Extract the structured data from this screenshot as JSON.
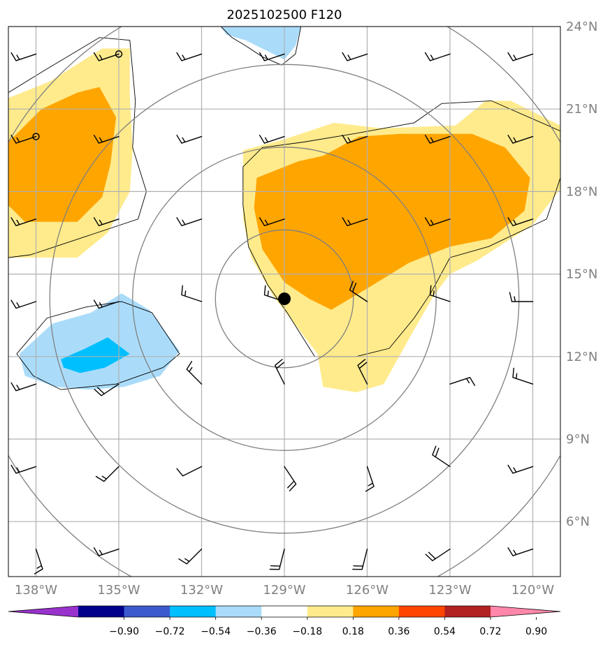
{
  "title": "2025102500 F120",
  "map": {
    "lon_range": [
      -139,
      -119
    ],
    "lat_range": [
      4,
      24
    ],
    "lat_ticks": [
      {
        "value": 24,
        "label": "24°N"
      },
      {
        "value": 21,
        "label": "21°N"
      },
      {
        "value": 18,
        "label": "18°N"
      },
      {
        "value": 15,
        "label": "15°N"
      },
      {
        "value": 12,
        "label": "12°N"
      },
      {
        "value": 9,
        "label": "9°N"
      },
      {
        "value": 6,
        "label": "6°N"
      }
    ],
    "lon_ticks": [
      {
        "value": -138,
        "label": "138°W"
      },
      {
        "value": -135,
        "label": "135°W"
      },
      {
        "value": -132,
        "label": "132°W"
      },
      {
        "value": -129,
        "label": "129°W"
      },
      {
        "value": -126,
        "label": "126°W"
      },
      {
        "value": -123,
        "label": "123°W"
      },
      {
        "value": -120,
        "label": "120°W"
      }
    ],
    "center": {
      "lon": -129,
      "lat": 14.1
    },
    "range_rings_deg": [
      2.5,
      5.5,
      8.5,
      11.5
    ],
    "grid_color": "#b0b0b0",
    "ring_color": "#808080"
  },
  "colorbar": {
    "colors": [
      "#9932cc",
      "#00008b",
      "#3c5acd",
      "#00bfff",
      "#aadcfa",
      "#ffffff",
      "#ffeb8c",
      "#ffa500",
      "#ff4500",
      "#b22222",
      "#ff88aa"
    ],
    "tick_labels": [
      "−0.90",
      "−0.72",
      "−0.54",
      "−0.36",
      "−0.18",
      "0.18",
      "0.36",
      "0.54",
      "0.72",
      "0.90"
    ]
  },
  "fields": [
    {
      "name": "west-positive-outer",
      "color": "#ffeb8c",
      "points": [
        [
          -139,
          21.4
        ],
        [
          -137.5,
          22.0
        ],
        [
          -135.6,
          23.2
        ],
        [
          -134.6,
          23.2
        ],
        [
          -134.6,
          21.5
        ],
        [
          -134.5,
          19.5
        ],
        [
          -134.6,
          18.0
        ],
        [
          -135.4,
          16.5
        ],
        [
          -136.5,
          15.6
        ],
        [
          -139,
          15.6
        ]
      ]
    },
    {
      "name": "west-positive-inner",
      "color": "#ffa500",
      "points": [
        [
          -139,
          19.8
        ],
        [
          -137.8,
          21.0
        ],
        [
          -136.5,
          21.6
        ],
        [
          -135.7,
          21.8
        ],
        [
          -135.1,
          20.7
        ],
        [
          -135.3,
          19.0
        ],
        [
          -135.6,
          17.8
        ],
        [
          -136.5,
          16.9
        ],
        [
          -138.4,
          16.9
        ],
        [
          -139,
          17.5
        ]
      ]
    },
    {
      "name": "east-positive-outer",
      "color": "#ffeb8c",
      "points": [
        [
          -130.5,
          19.5
        ],
        [
          -129.0,
          19.9
        ],
        [
          -127.2,
          20.5
        ],
        [
          -125.5,
          20.3
        ],
        [
          -122.8,
          20.4
        ],
        [
          -121.7,
          21.3
        ],
        [
          -120.8,
          21.3
        ],
        [
          -119,
          20.4
        ],
        [
          -119,
          18.1
        ],
        [
          -120.0,
          16.8
        ],
        [
          -122.0,
          15.5
        ],
        [
          -123.0,
          15.0
        ],
        [
          -123.6,
          14.2
        ],
        [
          -124.4,
          12.8
        ],
        [
          -125.4,
          11.0
        ],
        [
          -126.4,
          10.7
        ],
        [
          -127.6,
          10.9
        ],
        [
          -127.8,
          12.1
        ],
        [
          -129.4,
          14.2
        ],
        [
          -130.2,
          15.6
        ],
        [
          -130.5,
          17.0
        ]
      ]
    },
    {
      "name": "east-positive-inner",
      "color": "#ffa500",
      "points": [
        [
          -130.0,
          18.5
        ],
        [
          -128.5,
          19.1
        ],
        [
          -127.6,
          19.3
        ],
        [
          -126.3,
          20.0
        ],
        [
          -124.8,
          20.1
        ],
        [
          -122.2,
          20.1
        ],
        [
          -121.0,
          19.6
        ],
        [
          -120.1,
          18.5
        ],
        [
          -120.3,
          17.3
        ],
        [
          -121.5,
          16.3
        ],
        [
          -123.0,
          16.0
        ],
        [
          -124.5,
          15.4
        ],
        [
          -125.8,
          14.6
        ],
        [
          -127.3,
          13.7
        ],
        [
          -128.1,
          14.1
        ],
        [
          -129.0,
          14.7
        ],
        [
          -129.8,
          15.9
        ],
        [
          -130.1,
          17.4
        ]
      ]
    },
    {
      "name": "west-negative-outer",
      "color": "#aadcfa",
      "points": [
        [
          -138.6,
          12.1
        ],
        [
          -137.4,
          13.2
        ],
        [
          -136.0,
          13.6
        ],
        [
          -134.9,
          14.3
        ],
        [
          -133.9,
          13.7
        ],
        [
          -132.8,
          12.2
        ],
        [
          -133.5,
          11.3
        ],
        [
          -134.8,
          10.9
        ],
        [
          -136.1,
          10.8
        ],
        [
          -137.3,
          10.9
        ],
        [
          -138.4,
          11.3
        ]
      ]
    },
    {
      "name": "west-negative-inner",
      "color": "#00bfff",
      "points": [
        [
          -137.1,
          11.9
        ],
        [
          -136.2,
          12.3
        ],
        [
          -135.4,
          12.7
        ],
        [
          -134.6,
          12.1
        ],
        [
          -135.5,
          11.6
        ],
        [
          -136.4,
          11.4
        ],
        [
          -137.0,
          11.6
        ]
      ]
    },
    {
      "name": "north-negative",
      "color": "#aadcfa",
      "points": [
        [
          -131.3,
          24.0
        ],
        [
          -128.4,
          24.0
        ],
        [
          -128.6,
          23.3
        ],
        [
          -129.0,
          22.8
        ],
        [
          -129.6,
          23.1
        ],
        [
          -130.4,
          23.5
        ],
        [
          -131.1,
          23.7
        ]
      ]
    }
  ],
  "contours": [
    [
      [
        -139,
        21.6
      ],
      [
        -137.7,
        22.4
      ],
      [
        -135.7,
        23.6
      ],
      [
        -134.6,
        23.5
      ],
      [
        -134.4,
        21.3
      ],
      [
        -134.5,
        19.6
      ],
      [
        -134.0,
        18.0
      ],
      [
        -134.3,
        17.0
      ],
      [
        -136.4,
        16.3
      ],
      [
        -138.2,
        15.7
      ],
      [
        -139,
        15.6
      ]
    ],
    [
      [
        -138.7,
        12.1
      ],
      [
        -137.6,
        13.4
      ],
      [
        -136.2,
        13.8
      ],
      [
        -134.9,
        14.0
      ],
      [
        -133.8,
        13.6
      ],
      [
        -132.8,
        12.1
      ],
      [
        -133.4,
        11.6
      ],
      [
        -135.1,
        11.0
      ],
      [
        -137.1,
        10.8
      ],
      [
        -138.1,
        11.3
      ],
      [
        -138.7,
        12.1
      ]
    ],
    [
      [
        -131.3,
        24.0
      ],
      [
        -130.9,
        23.6
      ],
      [
        -130.4,
        23.3
      ],
      [
        -129.8,
        22.9
      ],
      [
        -129.1,
        22.6
      ],
      [
        -128.6,
        23.0
      ],
      [
        -128.4,
        24.0
      ]
    ],
    [
      [
        -130.5,
        18.9
      ],
      [
        -129.8,
        19.6
      ],
      [
        -128.3,
        19.8
      ],
      [
        -126.5,
        20.1
      ],
      [
        -124.3,
        20.5
      ],
      [
        -123.3,
        21.2
      ],
      [
        -121.5,
        21.3
      ],
      [
        -119,
        20.2
      ],
      [
        -119,
        18.5
      ],
      [
        -119.5,
        17.0
      ],
      [
        -121.6,
        16.0
      ],
      [
        -123.0,
        15.6
      ],
      [
        -123.7,
        14.3
      ],
      [
        -124.3,
        13.4
      ],
      [
        -125.2,
        12.3
      ],
      [
        -126.4,
        12.0
      ],
      [
        -127.9,
        12.0
      ],
      [
        -128.9,
        13.6
      ],
      [
        -129.6,
        14.6
      ],
      [
        -130.3,
        16.0
      ],
      [
        -130.5,
        17.5
      ],
      [
        -130.5,
        18.9
      ]
    ]
  ],
  "storm_center": {
    "lon": -129,
    "lat": 14.1
  },
  "small_circles": [
    {
      "lon": -138,
      "lat": 20.0
    },
    {
      "lon": -135,
      "lat": 23.0
    }
  ],
  "barb_lons": [
    -138,
    -135,
    -132,
    -129,
    -126,
    -123,
    -120
  ],
  "barb_lats": [
    5,
    8,
    11,
    14,
    17,
    20,
    23
  ],
  "barb_rows": [
    [
      {
        "u": -5,
        "v": 15
      },
      {
        "u": 15,
        "v": 5
      },
      {
        "u": 10,
        "v": 10
      },
      {
        "u": 5,
        "v": 20
      },
      {
        "u": 5,
        "v": 20
      },
      {
        "u": 15,
        "v": 10
      },
      {
        "u": 15,
        "v": 5
      }
    ],
    [
      {
        "u": 15,
        "v": 5
      },
      {
        "u": 10,
        "v": 10
      },
      {
        "u": 10,
        "v": 5
      },
      {
        "u": -10,
        "v": 15
      },
      {
        "u": -5,
        "v": 15
      },
      {
        "u": 15,
        "v": -10
      },
      {
        "u": 15,
        "v": 5
      }
    ],
    [
      {
        "u": 15,
        "v": 5
      },
      {
        "u": 15,
        "v": 10
      },
      {
        "u": 10,
        "v": -10
      },
      {
        "u": 10,
        "v": -20
      },
      {
        "u": 10,
        "v": -20
      },
      {
        "u": -15,
        "v": -5
      },
      {
        "u": 15,
        "v": -5
      }
    ],
    [
      {
        "u": 15,
        "v": 5
      },
      {
        "u": 15,
        "v": 5
      },
      {
        "u": 15,
        "v": -5
      },
      {
        "u": 15,
        "v": -5
      },
      {
        "u": 15,
        "v": -10
      },
      {
        "u": 15,
        "v": -5
      },
      {
        "u": 15,
        "v": 0
      }
    ],
    [
      {
        "u": 15,
        "v": 5
      },
      {
        "u": 15,
        "v": 5
      },
      {
        "u": 15,
        "v": 5
      },
      {
        "u": 15,
        "v": 5
      },
      {
        "u": 15,
        "v": 5
      },
      {
        "u": 15,
        "v": 5
      },
      {
        "u": 15,
        "v": 5
      }
    ],
    [
      {
        "u": 15,
        "v": 5
      },
      {
        "u": 15,
        "v": 5
      },
      {
        "u": 15,
        "v": 5
      },
      {
        "u": 15,
        "v": 5
      },
      {
        "u": 15,
        "v": 5
      },
      {
        "u": 15,
        "v": 5
      },
      {
        "u": 15,
        "v": 5
      }
    ],
    [
      {
        "u": 15,
        "v": 5
      },
      {
        "u": 15,
        "v": 5
      },
      {
        "u": 15,
        "v": 5
      },
      {
        "u": 15,
        "v": 5
      },
      {
        "u": 15,
        "v": 5
      },
      {
        "u": 15,
        "v": 5
      },
      {
        "u": 15,
        "v": 5
      }
    ]
  ]
}
